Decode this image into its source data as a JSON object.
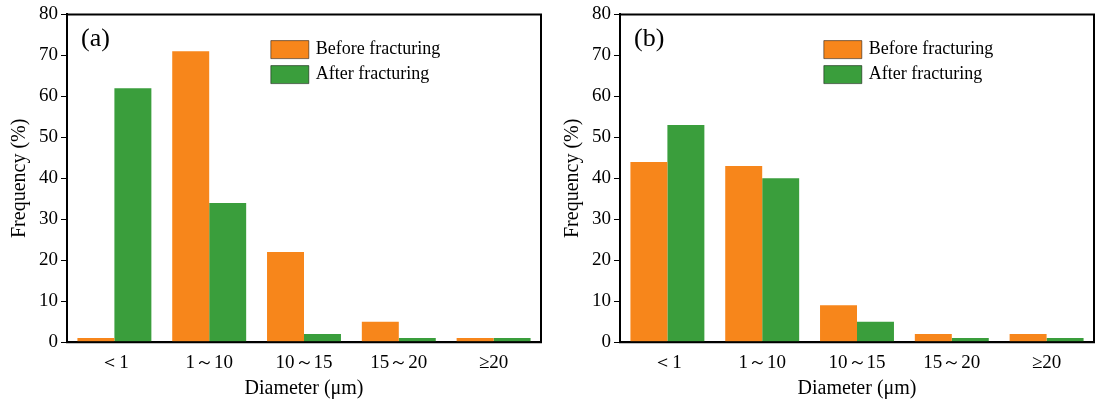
{
  "chart_data": [
    {
      "type": "bar",
      "annotations": [
        "(a)"
      ],
      "xlabel": "Diameter (μm)",
      "ylabel": "Frequency (%)",
      "categories": [
        "＜1",
        "1～10",
        "10～15",
        "15～20",
        "≥20"
      ],
      "ylim": [
        0,
        80
      ],
      "yticks": [
        0,
        10,
        20,
        30,
        40,
        50,
        60,
        70,
        80
      ],
      "grid": false,
      "legend": "top right",
      "series": [
        {
          "name": "Before fracturing",
          "color": "#f7861b",
          "values": [
            1,
            71,
            22,
            5,
            1
          ]
        },
        {
          "name": "After fracturing",
          "color": "#3a9e3c",
          "values": [
            62,
            34,
            2,
            1,
            1
          ]
        }
      ]
    },
    {
      "type": "bar",
      "annotations": [
        "(b)"
      ],
      "xlabel": "Diameter (μm)",
      "ylabel": "Frequency (%)",
      "categories": [
        "＜1",
        "1～10",
        "10～15",
        "15～20",
        "≥20"
      ],
      "ylim": [
        0,
        80
      ],
      "yticks": [
        0,
        10,
        20,
        30,
        40,
        50,
        60,
        70,
        80
      ],
      "grid": false,
      "legend": "top right",
      "series": [
        {
          "name": "Before fracturing",
          "color": "#f7861b",
          "values": [
            44,
            43,
            9,
            2,
            2
          ]
        },
        {
          "name": "After fracturing",
          "color": "#3a9e3c",
          "values": [
            53,
            40,
            5,
            1,
            1
          ]
        }
      ]
    }
  ]
}
